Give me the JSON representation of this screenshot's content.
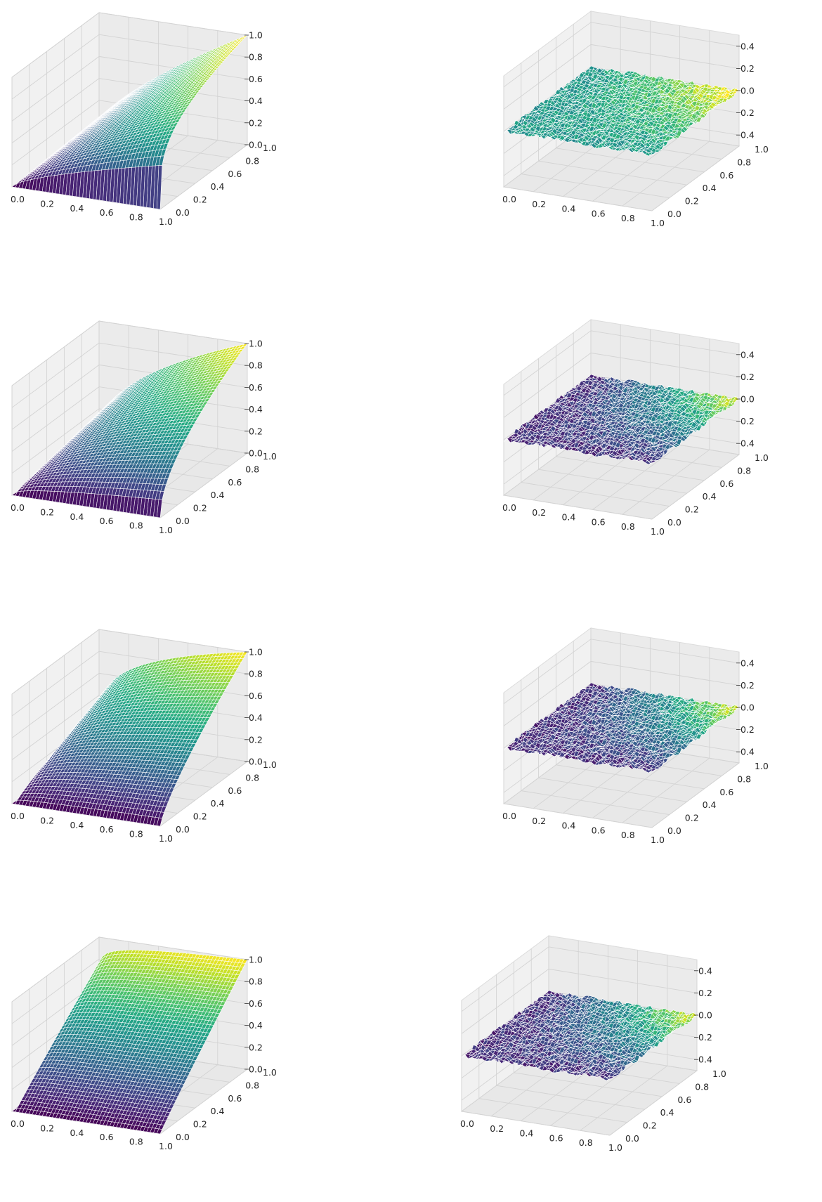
{
  "chart_data": [
    {
      "type": "surface",
      "panel": "row-1-left",
      "colormap": "viridis",
      "grid": true,
      "x_ticks": [
        "0.0",
        "0.2",
        "0.4",
        "0.6",
        "0.8",
        "1.0"
      ],
      "y_ticks": [
        "0.0",
        "0.2",
        "0.4",
        "0.6",
        "0.8",
        "1.0"
      ],
      "z_ticks": [
        "0.0",
        "0.2",
        "0.4",
        "0.6",
        "0.8",
        "1.0"
      ],
      "xlim": [
        0,
        1
      ],
      "ylim": [
        0,
        1
      ],
      "zlim": [
        0,
        1
      ],
      "surface": "z = y^0.25 * x^0.75",
      "y_exponent": 0.25
    },
    {
      "type": "surface",
      "panel": "row-1-right",
      "colormap": "viridis",
      "grid": true,
      "x_ticks": [
        "0.0",
        "0.2",
        "0.4",
        "0.6",
        "0.8",
        "1.0"
      ],
      "y_ticks": [
        "0.0",
        "0.2",
        "0.4",
        "0.6",
        "0.8",
        "1.0"
      ],
      "z_ticks": [
        "0.4",
        "0.2",
        "0.0",
        "0.2",
        "0.4"
      ],
      "xlim": [
        0,
        1
      ],
      "ylim": [
        0,
        1
      ],
      "zlim": [
        -0.5,
        0.5
      ],
      "surface": "approximately flat near z = 0 (residual); color rises toward x=1, y=1",
      "color_trend": "mid"
    },
    {
      "type": "surface",
      "panel": "row-2-left",
      "colormap": "viridis",
      "grid": true,
      "x_ticks": [
        "0.0",
        "0.2",
        "0.4",
        "0.6",
        "0.8",
        "1.0"
      ],
      "y_ticks": [
        "0.0",
        "0.2",
        "0.4",
        "0.6",
        "0.8",
        "1.0"
      ],
      "z_ticks": [
        "0.0",
        "0.2",
        "0.4",
        "0.6",
        "0.8",
        "1.0"
      ],
      "xlim": [
        0,
        1
      ],
      "ylim": [
        0,
        1
      ],
      "zlim": [
        0,
        1
      ],
      "surface": "z = y^0.5 * x^0.5",
      "y_exponent": 0.5
    },
    {
      "type": "surface",
      "panel": "row-2-right",
      "colormap": "viridis",
      "grid": true,
      "x_ticks": [
        "0.0",
        "0.2",
        "0.4",
        "0.6",
        "0.8",
        "1.0"
      ],
      "y_ticks": [
        "0.0",
        "0.2",
        "0.4",
        "0.6",
        "0.8",
        "1.0"
      ],
      "z_ticks": [
        "0.4",
        "0.2",
        "0.0",
        "0.2",
        "0.4"
      ],
      "xlim": [
        0,
        1
      ],
      "ylim": [
        0,
        1
      ],
      "zlim": [
        -0.5,
        0.5
      ],
      "surface": "approximately flat near z = 0 (residual); color rises toward x=1, y=1",
      "color_trend": "low"
    },
    {
      "type": "surface",
      "panel": "row-3-left",
      "colormap": "viridis",
      "grid": true,
      "x_ticks": [
        "0.0",
        "0.2",
        "0.4",
        "0.6",
        "0.8",
        "1.0"
      ],
      "y_ticks": [
        "0.0",
        "0.2",
        "0.4",
        "0.6",
        "0.8",
        "1.0"
      ],
      "z_ticks": [
        "0.0",
        "0.2",
        "0.4",
        "0.6",
        "0.8",
        "1.0"
      ],
      "xlim": [
        0,
        1
      ],
      "ylim": [
        0,
        1
      ],
      "zlim": [
        0,
        1
      ],
      "surface": "z = y^0.75 * x^0.25",
      "y_exponent": 0.75
    },
    {
      "type": "surface",
      "panel": "row-3-right",
      "colormap": "viridis",
      "grid": true,
      "x_ticks": [
        "0.0",
        "0.2",
        "0.4",
        "0.6",
        "0.8",
        "1.0"
      ],
      "y_ticks": [
        "0.0",
        "0.2",
        "0.4",
        "0.6",
        "0.8",
        "1.0"
      ],
      "z_ticks": [
        "0.4",
        "0.2",
        "0.0",
        "0.2",
        "0.4"
      ],
      "xlim": [
        0,
        1
      ],
      "ylim": [
        0,
        1
      ],
      "zlim": [
        -0.5,
        0.5
      ],
      "surface": "approximately flat near z = 0 (residual); color rises toward x=1, y=1",
      "color_trend": "low"
    },
    {
      "type": "surface",
      "panel": "row-4-left",
      "colormap": "viridis",
      "grid": true,
      "x_ticks": [
        "0.0",
        "0.2",
        "0.4",
        "0.6",
        "0.8",
        "1.0"
      ],
      "y_ticks": [
        "0.0",
        "0.2",
        "0.4",
        "0.6",
        "0.8",
        "1.0"
      ],
      "z_ticks": [
        "0.0",
        "0.2",
        "0.4",
        "0.6",
        "0.8",
        "1.0"
      ],
      "xlim": [
        0,
        1
      ],
      "ylim": [
        0,
        1
      ],
      "zlim": [
        0,
        1
      ],
      "surface": "z = y^1.0 * x^0.0 (approximately)",
      "y_exponent": 0.95
    },
    {
      "type": "surface",
      "panel": "row-4-right",
      "colormap": "viridis",
      "grid": true,
      "x_ticks": [
        "0.0",
        "0.2",
        "0.4",
        "0.6",
        "0.8",
        "1.0"
      ],
      "y_ticks": [
        "0.0",
        "0.2",
        "0.4",
        "0.6",
        "0.8",
        "1.0"
      ],
      "z_ticks": [
        "0.4",
        "0.2",
        "0.0",
        "0.2",
        "0.4"
      ],
      "xlim": [
        0,
        1
      ],
      "ylim": [
        0,
        1
      ],
      "zlim": [
        -0.5,
        0.5
      ],
      "surface": "approximately flat near z = 0 (residual); color rises toward x=1, y=1",
      "color_trend": "low"
    }
  ]
}
